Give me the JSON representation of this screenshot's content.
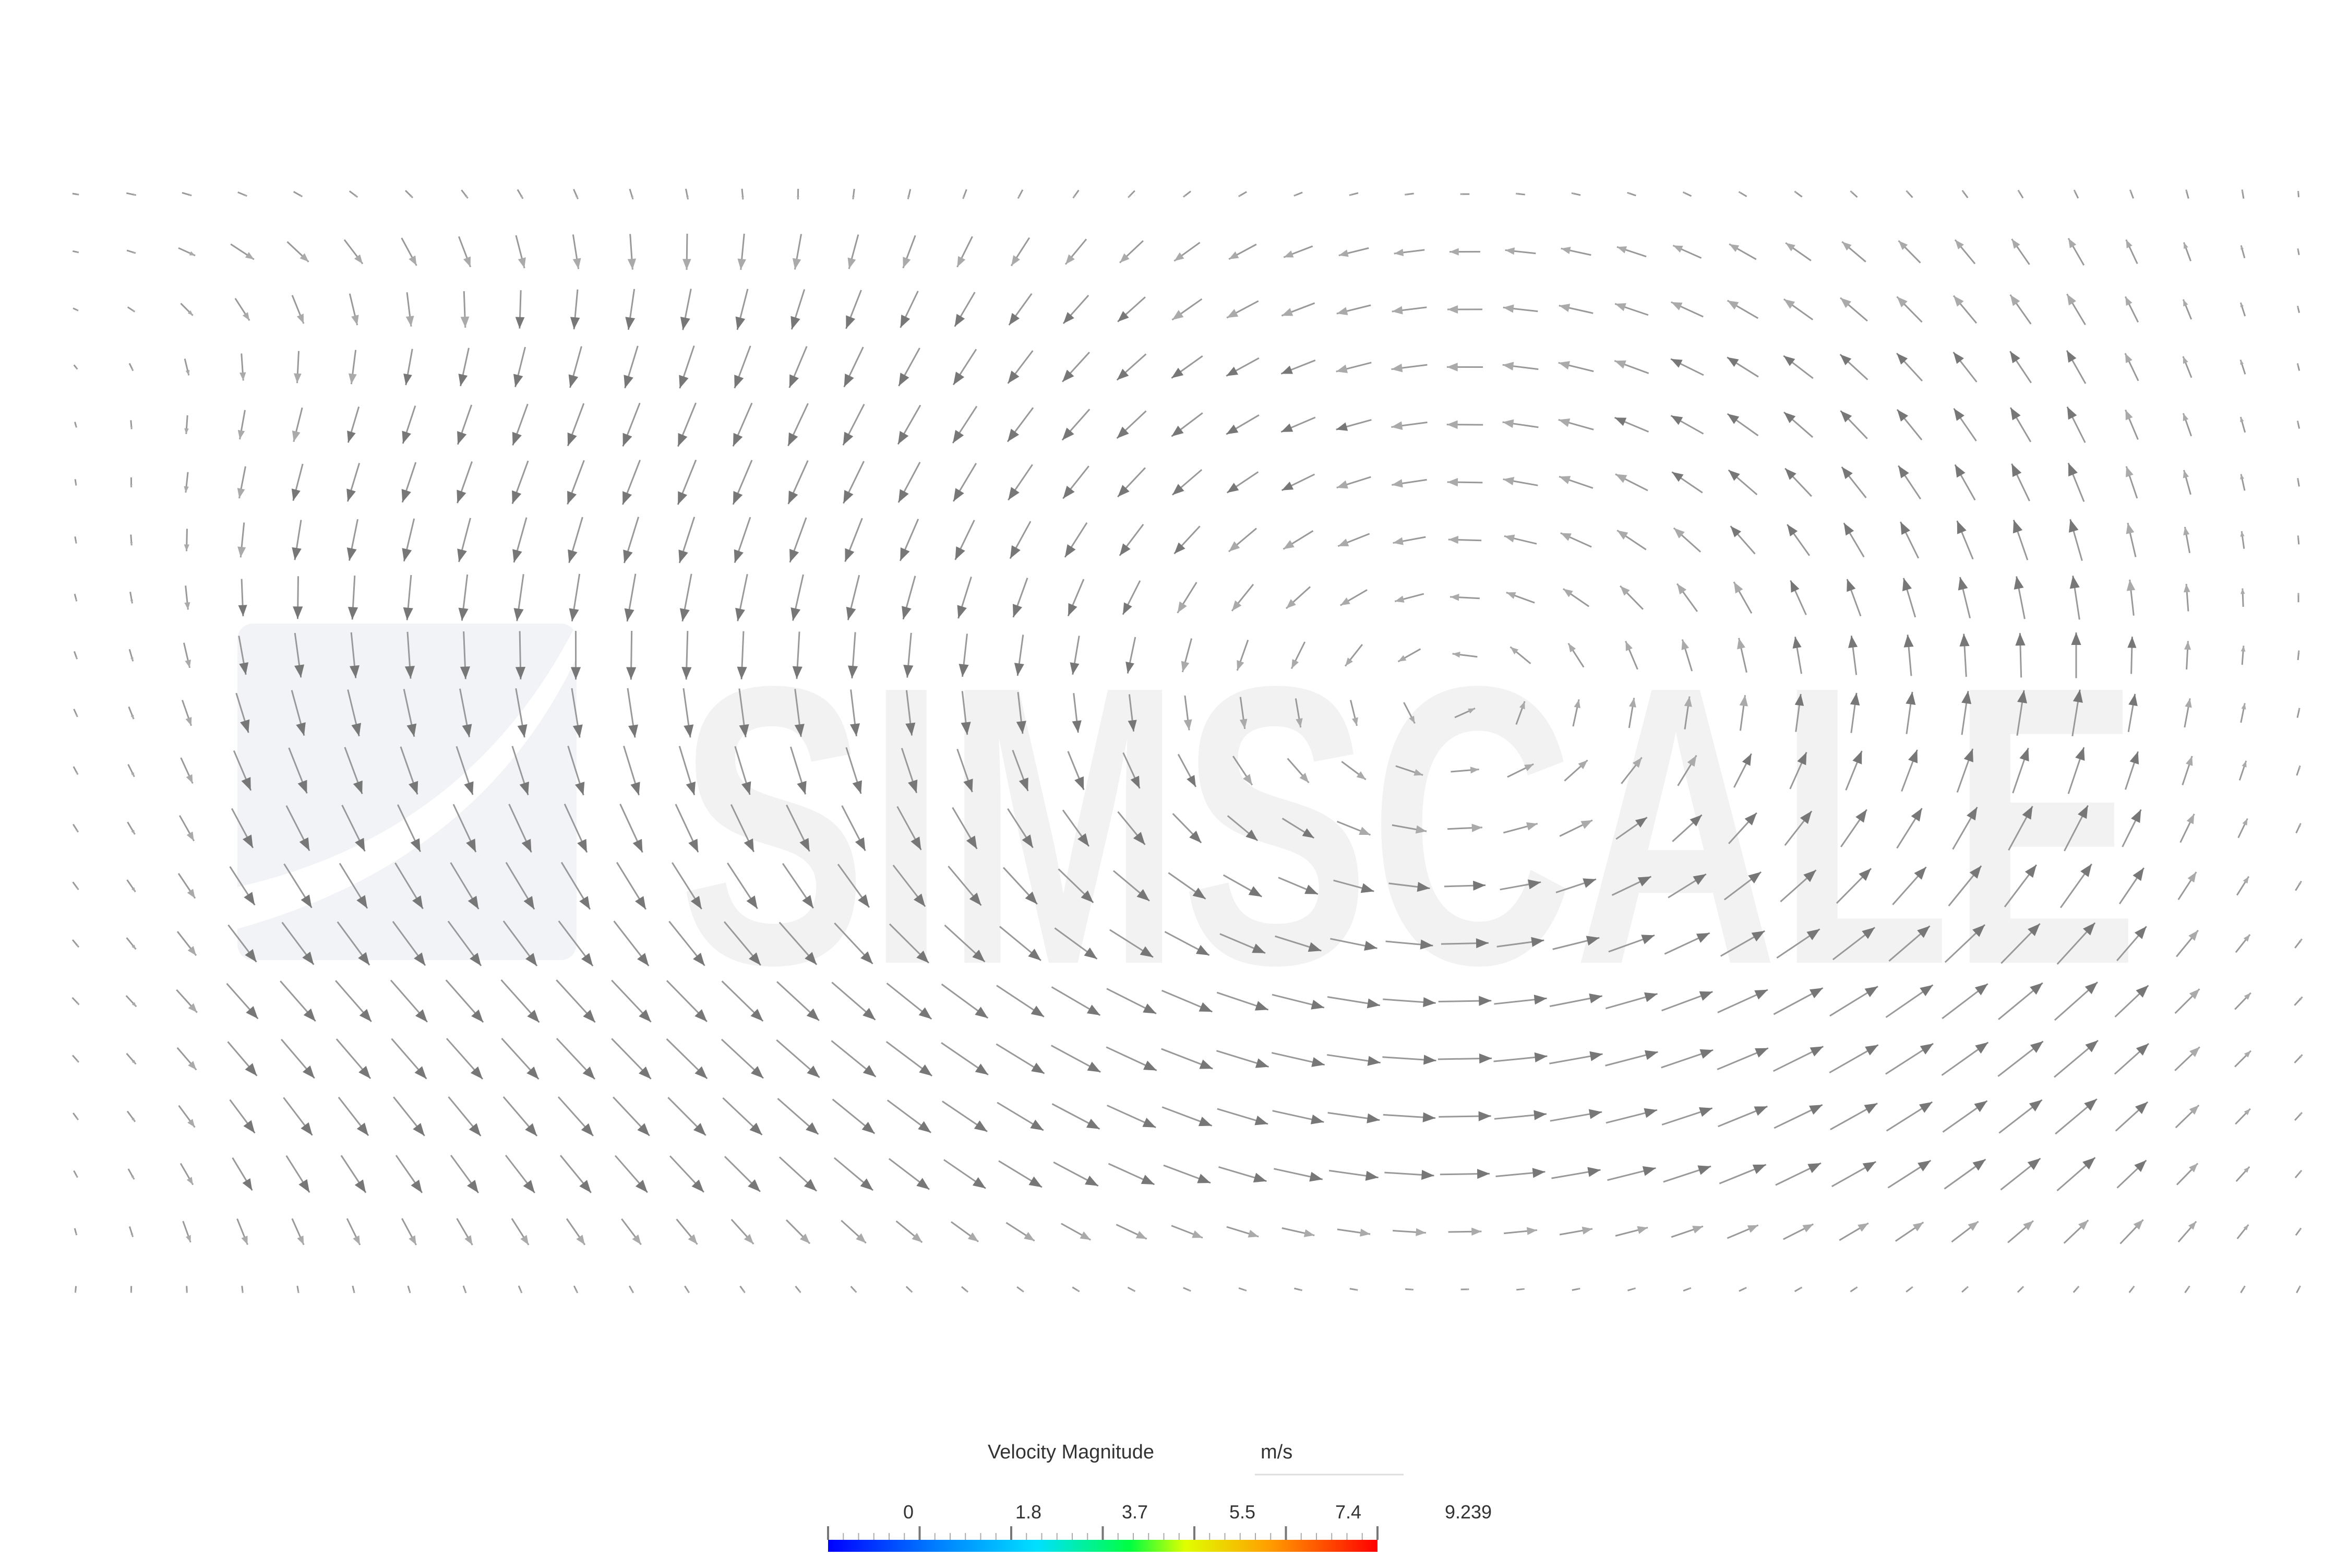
{
  "watermark": "SIMSCALE",
  "legend": {
    "title": "Velocity Magnitude",
    "unit": "m/s",
    "ticks": [
      "0",
      "1.8",
      "3.7",
      "5.5",
      "7.4",
      "9.239"
    ]
  }
}
